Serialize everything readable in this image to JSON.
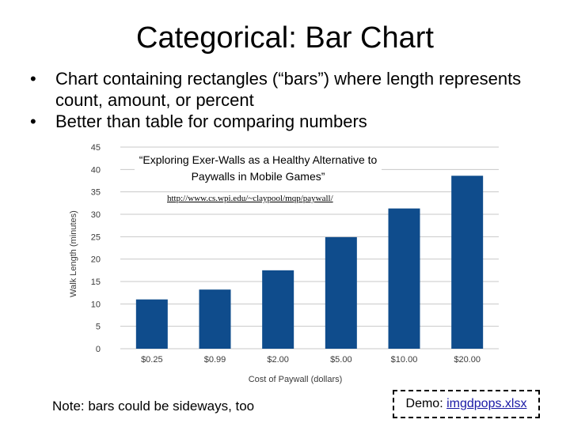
{
  "slide": {
    "title": "Categorical: Bar Chart",
    "bullets": [
      "Chart containing rectangles (“bars”) where length represents count, amount, or percent",
      "Better than table for comparing numbers"
    ],
    "bullet_marker": "•",
    "caption": "“Exploring Exer-Walls as a Healthy Alternative to Paywalls in Mobile Games”",
    "caption_url": "http://www.cs.wpi.edu/~claypool/mqp/paywall/",
    "note": "Note: bars could be sideways, too",
    "demo_prefix": "Demo:",
    "demo_link": "imgdpops.xlsx"
  },
  "colors": {
    "bar": "#0f4c8c",
    "grid": "#c8c8c8",
    "axis_text": "#3a3a3a",
    "link": "#1a1aa6"
  },
  "chart_data": {
    "type": "bar",
    "categories": [
      "$0.25",
      "$0.99",
      "$2.00",
      "$5.00",
      "$10.00",
      "$20.00"
    ],
    "values": [
      11,
      13.2,
      17.5,
      24.9,
      31.3,
      38.6
    ],
    "xlabel": "Cost of Paywall (dollars)",
    "ylabel": "Walk Length (minutes)",
    "ylim": [
      0,
      45
    ],
    "yticks": [
      0,
      5,
      10,
      15,
      20,
      25,
      30,
      35,
      40,
      45
    ],
    "grid": true,
    "legend": "none"
  }
}
